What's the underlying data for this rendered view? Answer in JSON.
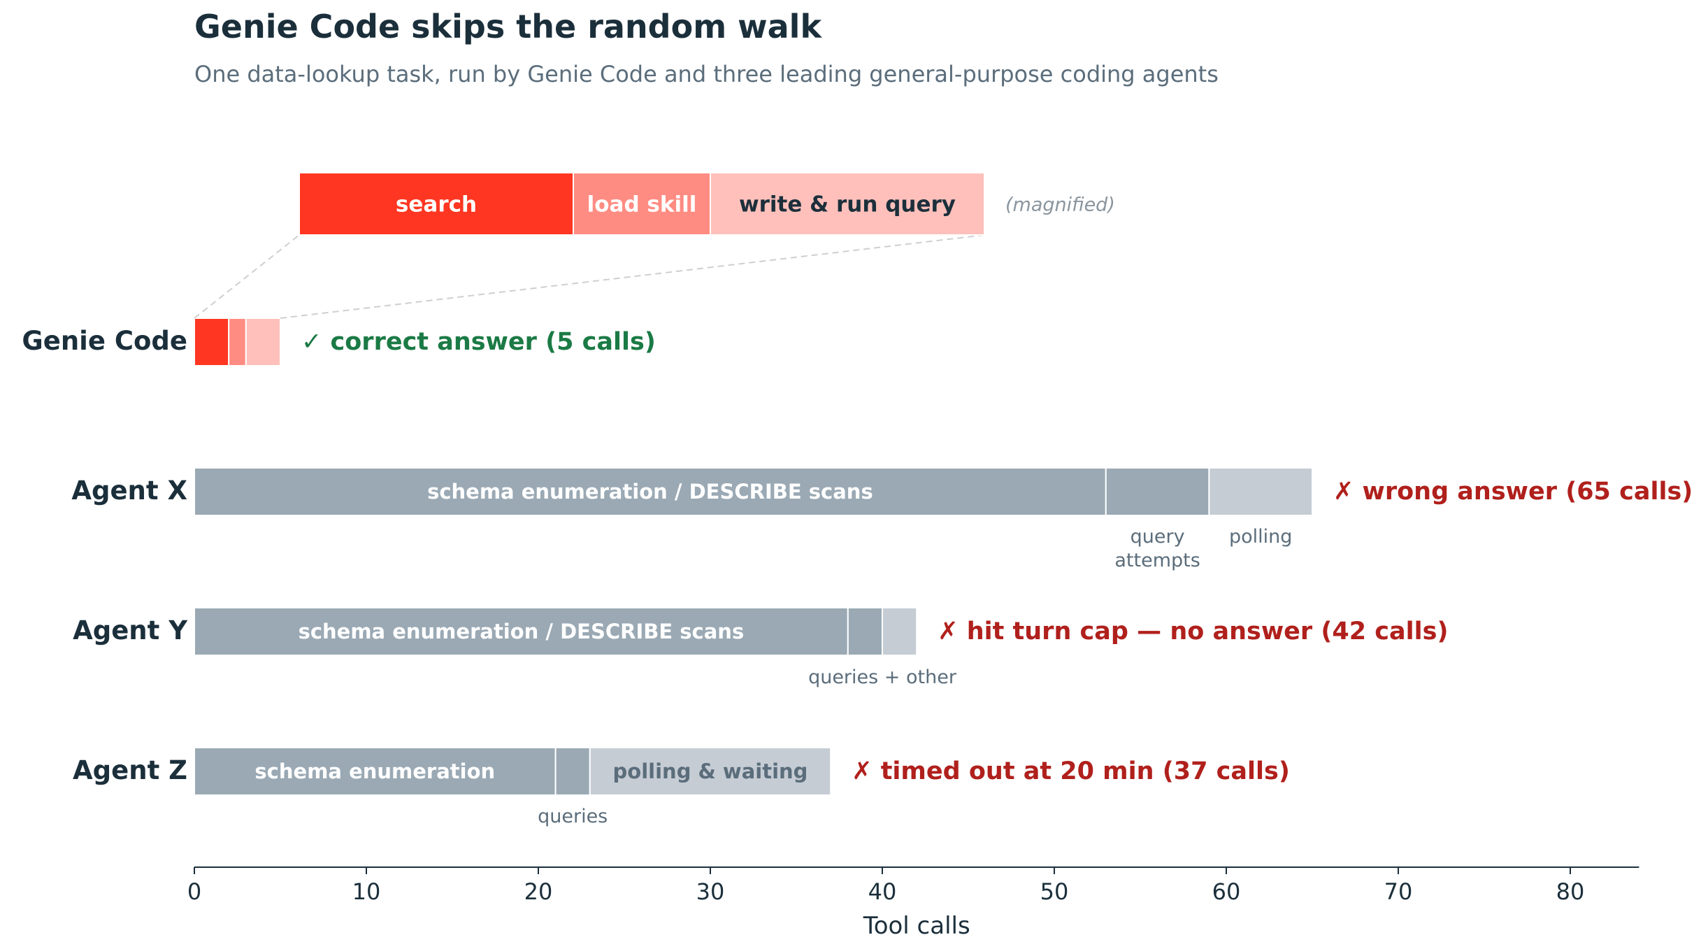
{
  "title": "Genie Code skips the random walk",
  "subtitle": "One data-lookup task, run by Genie Code and three leading general-purpose coding agents",
  "colors": {
    "text_dark": "#1b2f3b",
    "text_muted": "#5b6d7b",
    "genie_1": "#ff3621",
    "genie_2": "#ff8c82",
    "genie_3": "#ffc0bb",
    "agent_dark": "#9aa9b4",
    "agent_light": "#c5ccd4",
    "success": "#1b7a45",
    "fail": "#b0201c",
    "magnified_note": "#8a959e"
  },
  "chart_data": {
    "type": "bar",
    "orientation": "horizontal",
    "stacked": true,
    "xlabel": "Tool calls",
    "xlim": [
      0,
      84
    ],
    "xticks": [
      0,
      10,
      20,
      30,
      40,
      50,
      60,
      70,
      80
    ],
    "grid": false,
    "rows": [
      {
        "name": "Genie Code",
        "total": 5,
        "segments": [
          {
            "label": "search",
            "value": 2,
            "color": "#ff3621"
          },
          {
            "label": "load skill",
            "value": 1,
            "color": "#ff8c82"
          },
          {
            "label": "write & run query",
            "value": 2,
            "color": "#ffc0bb"
          }
        ],
        "outcome": "✓ correct answer (5 calls)",
        "outcome_status": "success"
      },
      {
        "name": "Agent X",
        "total": 65,
        "segments": [
          {
            "label": "schema enumeration / DESCRIBE scans",
            "value": 53,
            "color": "#9aa9b4",
            "label_inside": true
          },
          {
            "label": "query\nattempts",
            "value": 6,
            "color": "#9aa9b4",
            "label_below": true
          },
          {
            "label": "polling",
            "value": 6,
            "color": "#c5ccd4",
            "label_below": true
          }
        ],
        "outcome": "✗ wrong answer (65 calls)",
        "outcome_status": "fail"
      },
      {
        "name": "Agent Y",
        "total": 42,
        "segments": [
          {
            "label": "schema enumeration / DESCRIBE scans",
            "value": 38,
            "color": "#9aa9b4",
            "label_inside": true
          },
          {
            "label": "",
            "value": 2,
            "color": "#9aa9b4"
          },
          {
            "label": "",
            "value": 2,
            "color": "#c5ccd4"
          }
        ],
        "below_label": "queries + other",
        "outcome": "✗ hit turn cap — no answer (42 calls)",
        "outcome_status": "fail"
      },
      {
        "name": "Agent Z",
        "total": 37,
        "segments": [
          {
            "label": "schema enumeration",
            "value": 21,
            "color": "#9aa9b4",
            "label_inside": true
          },
          {
            "label": "queries",
            "value": 2,
            "color": "#9aa9b4",
            "label_below": true
          },
          {
            "label": "polling & waiting",
            "value": 14,
            "color": "#c5ccd4",
            "label_inside": true
          }
        ],
        "outcome": "✗ timed out at 20 min (37 calls)",
        "outcome_status": "fail"
      }
    ],
    "magnified_inset": {
      "row": "Genie Code",
      "note": "(magnified)",
      "segments": [
        "search",
        "load skill",
        "write & run query"
      ]
    }
  }
}
